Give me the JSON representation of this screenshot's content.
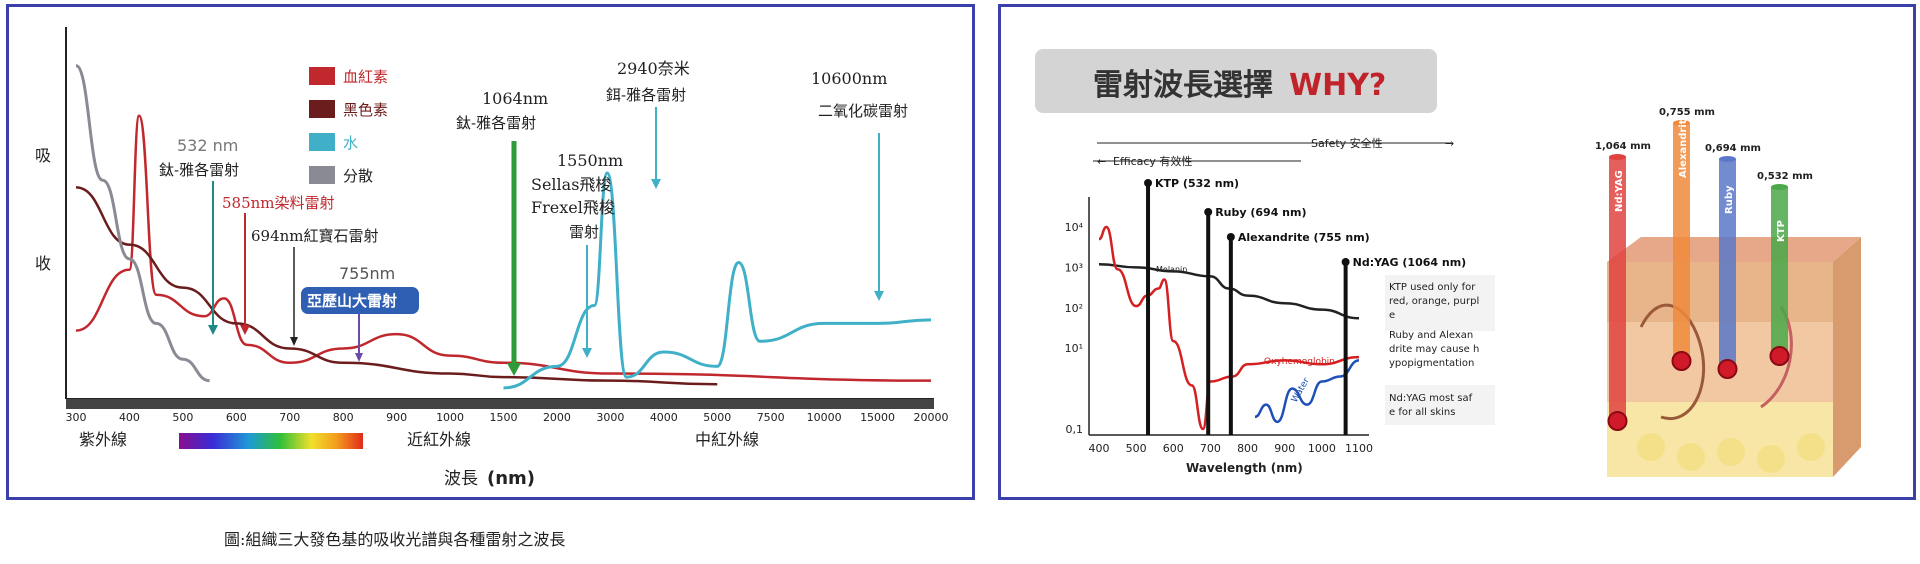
{
  "caption": "圖:組織三大發色基的吸收光譜與各種雷射之波長",
  "left_chart": {
    "y_label": [
      "吸",
      "收"
    ],
    "x_label": "波長",
    "x_unit": "(nm)",
    "x_ticks": [
      "300",
      "400",
      "500",
      "600",
      "700",
      "800",
      "900",
      "1000",
      "1500",
      "2000",
      "3000",
      "4000",
      "5000",
      "7500",
      "10000",
      "15000",
      "20000"
    ],
    "regions": [
      "紫外線",
      "近紅外線",
      "中紅外線"
    ],
    "legend": [
      {
        "label": "血紅素",
        "color": "#c0282e"
      },
      {
        "label": "黑色素",
        "color": "#6b1c1c"
      },
      {
        "label": "水",
        "color": "#3fb0c8"
      },
      {
        "label": "分散",
        "color": "#8a8a94"
      }
    ],
    "annotations": {
      "a532_nm": "532 nm",
      "a532_name": "鈦-雅各雷射",
      "a585": "585nm染料雷射",
      "a694": "694nm紅寶石雷射",
      "a755_nm": "755nm",
      "a755_name": "亞歷山大雷射",
      "a1064_nm": "1064nm",
      "a1064_name": "鈦-雅各雷射",
      "a1550_nm": "1550nm",
      "a1550_l2": "Sellas飛梭",
      "a1550_l3": "Frexel飛梭",
      "a1550_l4": "雷射",
      "a2940_nm": "2940奈米",
      "a2940_name": "鉺-雅各雷射",
      "a10600_nm": "10600nm",
      "a10600_name": "二氧化碳雷射"
    }
  },
  "right_chart": {
    "banner": {
      "zh": "雷射波長選擇",
      "en": "WHY?"
    },
    "safety_label": "Safety 安全性",
    "efficacy_label": "Efficacy 有效性",
    "y_ticks": [
      "10⁴",
      "10³",
      "10²",
      "10¹",
      "0,1"
    ],
    "x_ticks": [
      "400",
      "500",
      "600",
      "700",
      "800",
      "900",
      "1000",
      "1100"
    ],
    "x_label": "Wavelength (nm)",
    "lasers": [
      "KTP (532 nm)",
      "Ruby (694 nm)",
      "Alexandrite (755 nm)",
      "Nd:YAG (1064 nm)"
    ],
    "curve_labels": {
      "melanin": "Melanin",
      "oxy": "Oxyhemoglobin",
      "water": "Water"
    },
    "notes": [
      [
        "KTP used only for",
        "red, orange, purpl",
        "e"
      ],
      [
        "Ruby and Alexan",
        "drite may cause h",
        "ypopigmentation"
      ],
      [
        "Nd:YAG most saf",
        "e for all skins"
      ]
    ],
    "skin_lasers": [
      {
        "depth": "1,064 mm",
        "name": "Nd:YAG",
        "color": "#e0433f"
      },
      {
        "depth": "0,755 mm",
        "name": "Alexandrite",
        "color": "#f08a3c"
      },
      {
        "depth": "0,694 mm",
        "name": "Ruby",
        "color": "#5b78c8"
      },
      {
        "depth": "0,532 mm",
        "name": "KTP",
        "color": "#4aa84a"
      }
    ]
  },
  "chart_data": [
    {
      "type": "line",
      "series": [
        {
          "name": "血紅素",
          "points": [
            [
              300,
              0.18
            ],
            [
              400,
              0.35
            ],
            [
              418,
              0.78
            ],
            [
              450,
              0.28
            ],
            [
              540,
              0.22
            ],
            [
              577,
              0.27
            ],
            [
              620,
              0.14
            ],
            [
              700,
              0.09
            ],
            [
              800,
              0.13
            ],
            [
              900,
              0.17
            ],
            [
              1000,
              0.11
            ],
            [
              1500,
              0.09
            ],
            [
              3000,
              0.06
            ],
            [
              20000,
              0.04
            ]
          ]
        },
        {
          "name": "黑色素",
          "points": [
            [
              300,
              0.58
            ],
            [
              400,
              0.42
            ],
            [
              500,
              0.3
            ],
            [
              600,
              0.2
            ],
            [
              700,
              0.13
            ],
            [
              800,
              0.09
            ],
            [
              1000,
              0.06
            ],
            [
              1500,
              0.05
            ],
            [
              3000,
              0.04
            ],
            [
              5000,
              0.03
            ]
          ]
        },
        {
          "name": "水",
          "points": [
            [
              1500,
              0.02
            ],
            [
              2000,
              0.08
            ],
            [
              2700,
              0.25
            ],
            [
              2940,
              0.62
            ],
            [
              3300,
              0.05
            ],
            [
              4000,
              0.12
            ],
            [
              5000,
              0.08
            ],
            [
              6000,
              0.37
            ],
            [
              7000,
              0.15
            ],
            [
              10000,
              0.2
            ],
            [
              15000,
              0.2
            ],
            [
              20000,
              0.21
            ]
          ]
        },
        {
          "name": "分散",
          "points": [
            [
              300,
              0.92
            ],
            [
              350,
              0.6
            ],
            [
              400,
              0.38
            ],
            [
              450,
              0.2
            ],
            [
              500,
              0.1
            ],
            [
              550,
              0.04
            ]
          ]
        }
      ]
    },
    {
      "type": "line",
      "xlabel": "Wavelength (nm)",
      "xlim": [
        400,
        1100
      ],
      "ylim": [
        0.1,
        10000
      ],
      "y_scale": "log",
      "series": [
        {
          "name": "Melanin",
          "points": [
            [
              400,
              1200
            ],
            [
              500,
              1000
            ],
            [
              600,
              800
            ],
            [
              700,
              600
            ],
            [
              750,
              300
            ],
            [
              800,
              200
            ],
            [
              900,
              130
            ],
            [
              1000,
              90
            ],
            [
              1100,
              55
            ]
          ]
        },
        {
          "name": "Oxyhemoglobin",
          "points": [
            [
              400,
              5000
            ],
            [
              420,
              10000
            ],
            [
              450,
              900
            ],
            [
              500,
              110
            ],
            [
              530,
              200
            ],
            [
              560,
              300
            ],
            [
              576,
              500
            ],
            [
              600,
              15
            ],
            [
              650,
              1.2
            ],
            [
              680,
              0.1
            ],
            [
              700,
              1.5
            ],
            [
              760,
              2
            ],
            [
              800,
              4
            ],
            [
              900,
              5
            ],
            [
              1000,
              4
            ],
            [
              1100,
              6
            ]
          ]
        },
        {
          "name": "Water",
          "points": [
            [
              820,
              0.2
            ],
            [
              850,
              0.4
            ],
            [
              880,
              0.15
            ],
            [
              920,
              1
            ],
            [
              960,
              0.4
            ],
            [
              1000,
              1.5
            ],
            [
              1050,
              2
            ],
            [
              1100,
              5
            ]
          ]
        }
      ]
    }
  ]
}
